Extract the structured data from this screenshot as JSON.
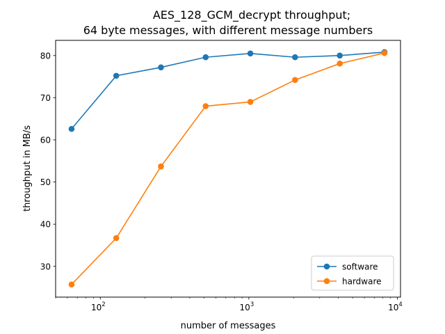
{
  "chart_data": {
    "type": "line",
    "title_line1": "AES_128_GCM_decrypt throughput;",
    "title_line2": "64 byte messages, with different message numbers",
    "xlabel": "number of messages",
    "ylabel": "throughput in MB/s",
    "x_scale": "log",
    "xlim": [
      50,
      10500
    ],
    "ylim": [
      22.7,
      83.6
    ],
    "x_ticks": [
      {
        "value": 100,
        "base": "10",
        "exp": "2"
      },
      {
        "value": 1000,
        "base": "10",
        "exp": "3"
      },
      {
        "value": 10000,
        "base": "10",
        "exp": "4"
      }
    ],
    "y_ticks": [
      30,
      40,
      50,
      60,
      70,
      80
    ],
    "grid": false,
    "legend_position": "lower-right",
    "x": [
      64,
      128,
      256,
      512,
      1024,
      2048,
      4096,
      8192
    ],
    "series": [
      {
        "name": "software",
        "color": "#1f77b4",
        "values": [
          62.6,
          75.2,
          77.2,
          79.6,
          80.5,
          79.6,
          80.0,
          80.8
        ]
      },
      {
        "name": "hardware",
        "color": "#ff7f0e",
        "values": [
          25.7,
          36.7,
          53.7,
          68.0,
          69.0,
          74.2,
          78.1,
          80.6
        ]
      }
    ]
  }
}
